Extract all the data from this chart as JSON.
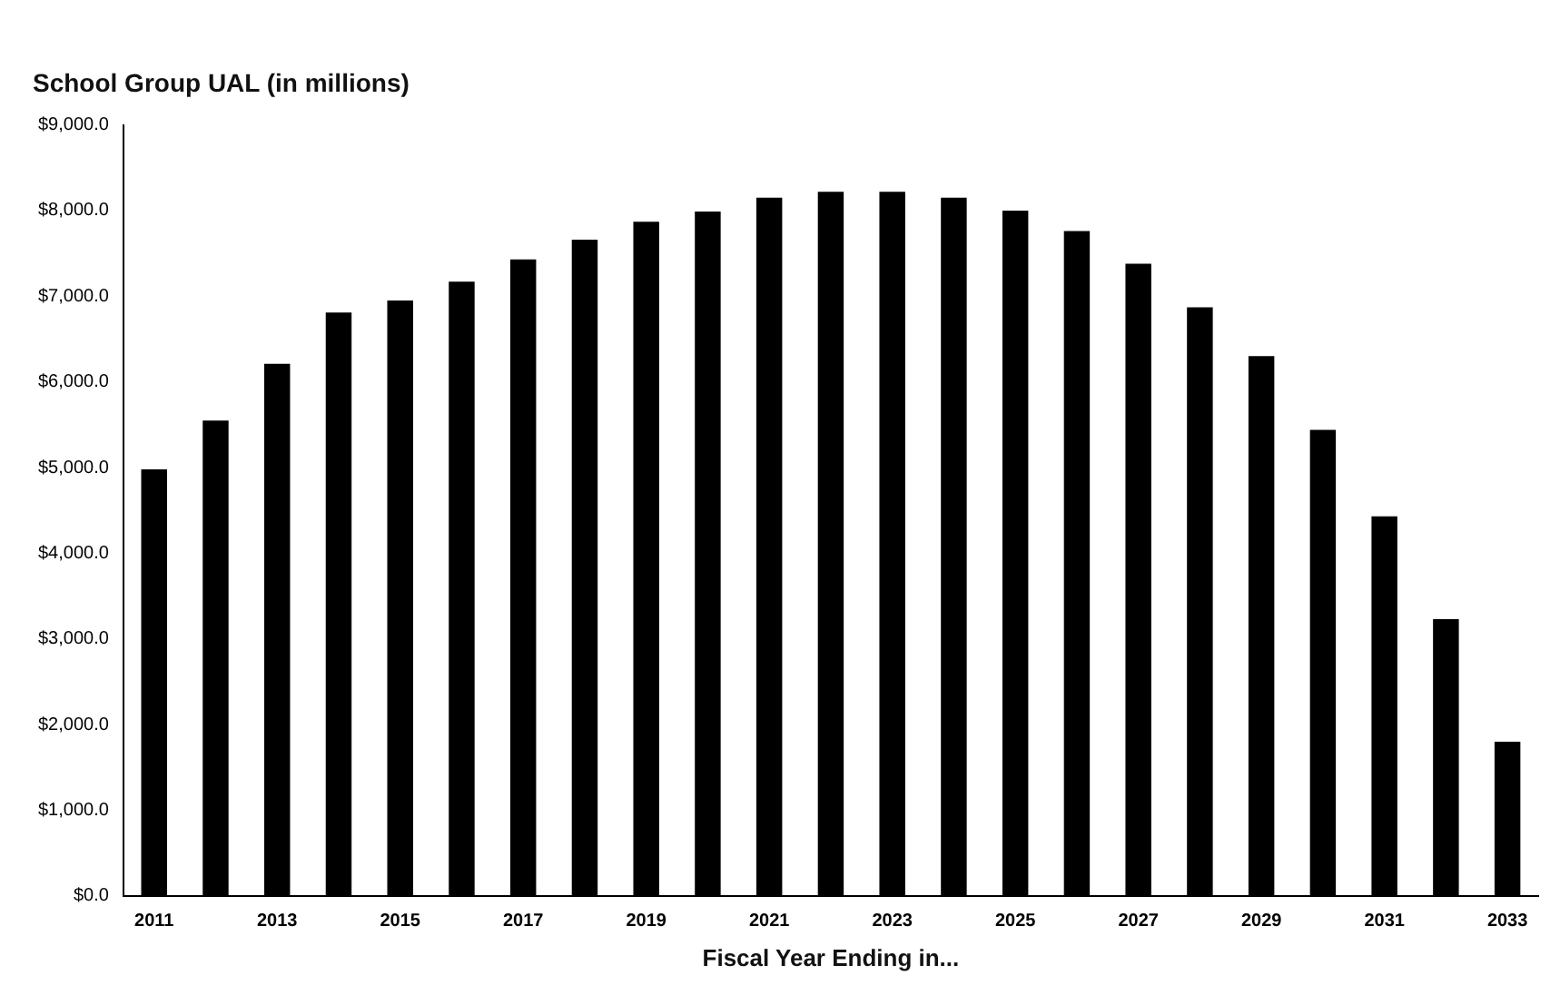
{
  "chart_data": {
    "type": "bar",
    "title": "School Group UAL (in millions)",
    "xlabel": "Fiscal Year Ending in...",
    "categories": [
      "2011",
      null,
      "2013",
      null,
      "2015",
      null,
      "2017",
      null,
      "2019",
      null,
      "2021",
      null,
      "2023",
      null,
      "2025",
      null,
      "2027",
      null,
      "2029",
      null,
      "2031",
      null,
      "2033"
    ],
    "values": [
      4980,
      5550,
      6210,
      6810,
      6950,
      7170,
      7430,
      7660,
      7870,
      7990,
      8150,
      8220,
      8220,
      8150,
      8000,
      7760,
      7380,
      6870,
      6300,
      5440,
      4430,
      3230,
      1800
    ],
    "color": "#000000",
    "ylim": [
      0,
      9000
    ],
    "yticks": [
      {
        "value": 0,
        "label": "$0.0"
      },
      {
        "value": 1000,
        "label": "$1,000.0"
      },
      {
        "value": 2000,
        "label": "$2,000.0"
      },
      {
        "value": 3000,
        "label": "$3,000.0"
      },
      {
        "value": 4000,
        "label": "$4,000.0"
      },
      {
        "value": 5000,
        "label": "$5,000.0"
      },
      {
        "value": 6000,
        "label": "$6,000.0"
      },
      {
        "value": 7000,
        "label": "$7,000.0"
      },
      {
        "value": 8000,
        "label": "$8,000.0"
      },
      {
        "value": 9000,
        "label": "$9,000.0"
      }
    ],
    "grid": false,
    "legend": false
  }
}
